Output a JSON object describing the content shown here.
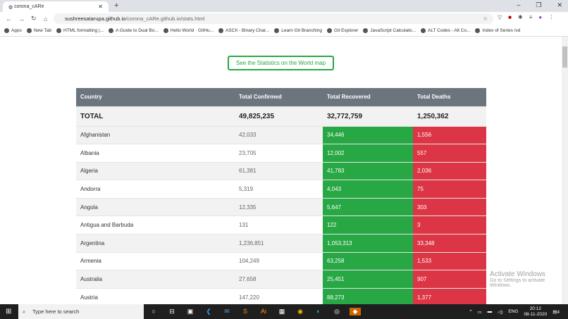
{
  "browser": {
    "tab_title": "corona_cARe",
    "url_host": "sushreesatarupa.github.io",
    "url_path": "/corona_cARe.github.io/stats.html",
    "bookmarks": [
      "Apps",
      "New Tab",
      "HTML formatting |...",
      "A Guide to Dual Bo...",
      "Hello World · GitHu...",
      "ASCII - Binary Char...",
      "Learn Git Branching",
      "Git Explorer",
      "JavaScript Calculato...",
      "ALT Codes - Alt Co...",
      "Index of Series /vd"
    ]
  },
  "page": {
    "map_button": "See the Statistics on the World map",
    "headers": [
      "Country",
      "Total Confirmed",
      "Total Recovered",
      "Total Deaths"
    ],
    "total": {
      "label": "TOTAL",
      "confirmed": "49,825,235",
      "recovered": "32,772,759",
      "deaths": "1,250,362"
    },
    "rows": [
      [
        "Afghanistan",
        "42,033",
        "34,446",
        "1,556"
      ],
      [
        "Albania",
        "23,705",
        "12,002",
        "557"
      ],
      [
        "Algeria",
        "61,381",
        "41,783",
        "2,036"
      ],
      [
        "Andorra",
        "5,319",
        "4,043",
        "75"
      ],
      [
        "Angola",
        "12,335",
        "5,647",
        "303"
      ],
      [
        "Antigua and Barbuda",
        "131",
        "122",
        "3"
      ],
      [
        "Argentina",
        "1,236,851",
        "1,053,313",
        "33,348"
      ],
      [
        "Armenia",
        "104,249",
        "63,258",
        "1,533"
      ],
      [
        "Australia",
        "27,658",
        "25,451",
        "907"
      ],
      [
        "Austria",
        "147,220",
        "88,273",
        "1,377"
      ]
    ],
    "colors": {
      "recovered": "#28a745",
      "deaths": "#dc3545",
      "header": "#6c757d"
    }
  },
  "watermark": {
    "title": "Activate Windows",
    "sub": "Go to Settings to activate Windows."
  },
  "taskbar": {
    "search_placeholder": "Type here to search",
    "lang": "ENG",
    "time": "20:12",
    "date": "08-11-2020",
    "notifications": "4"
  }
}
